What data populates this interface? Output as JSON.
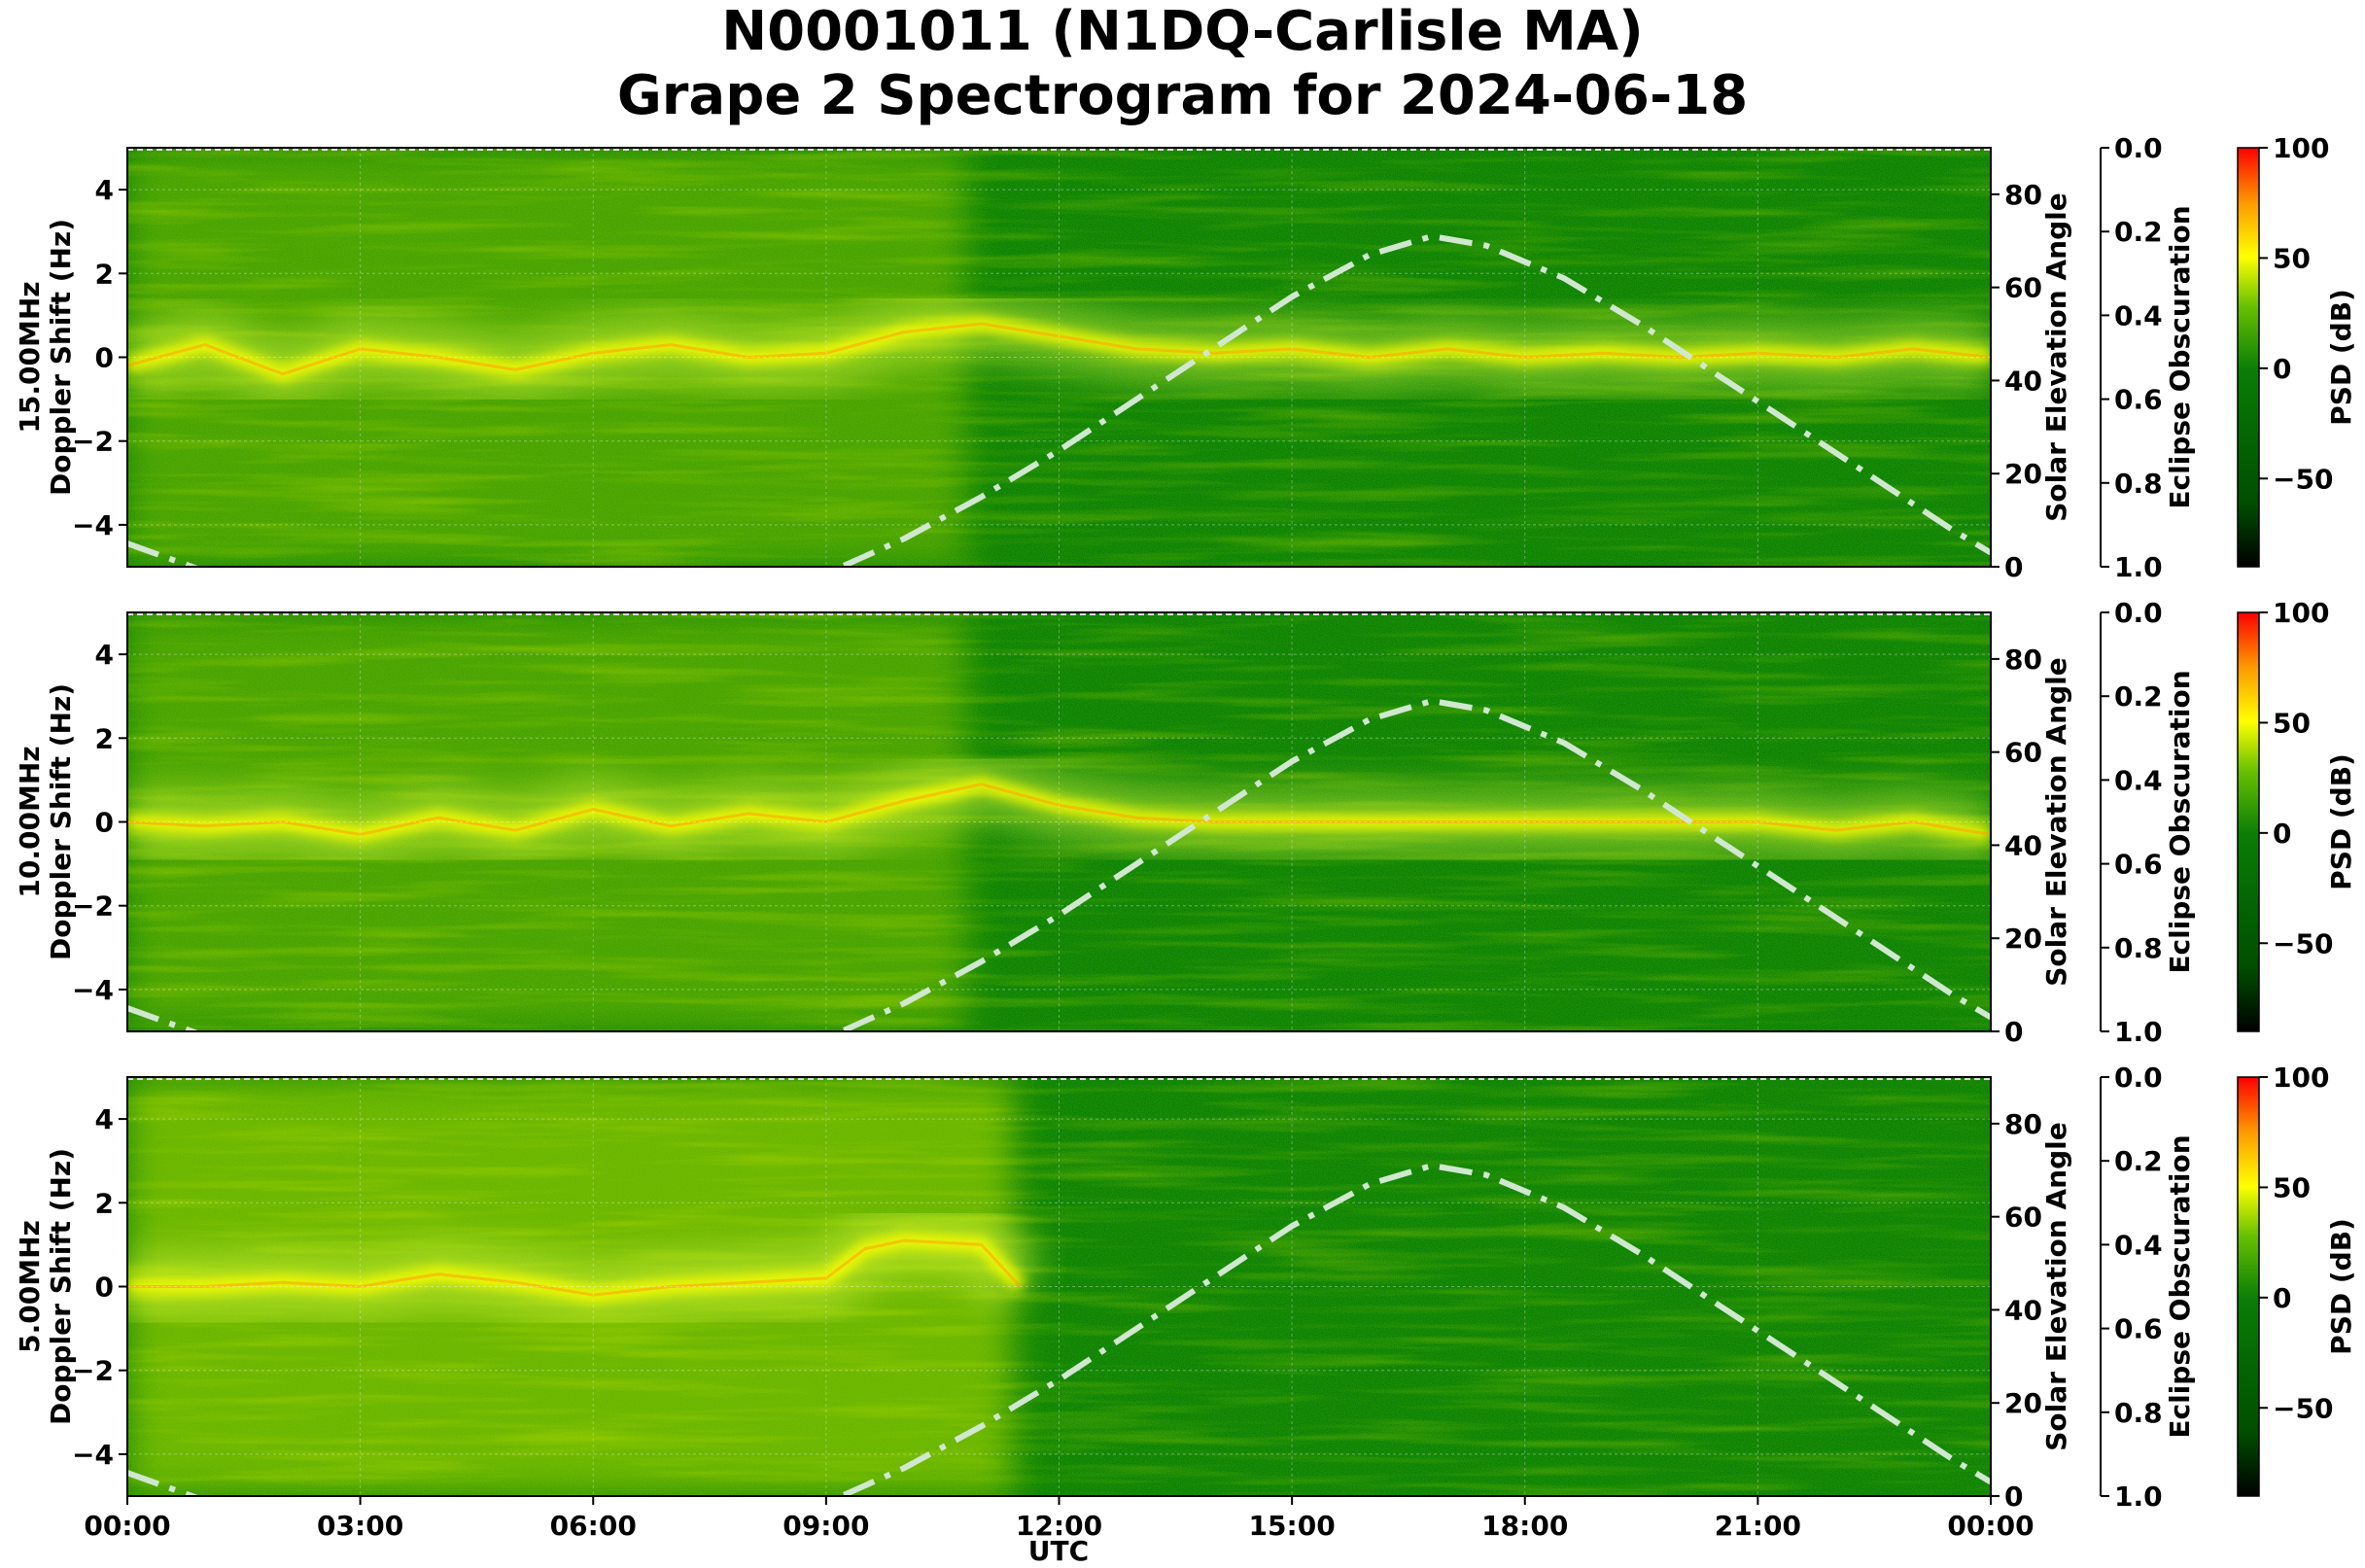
{
  "chart_data": {
    "type": "heatmap",
    "title_line1": "N0001011 (N1DQ-Carlisle MA)",
    "title_line2": "Grape 2 Spectrogram for 2024-06-18",
    "xlabel": "UTC",
    "x_ticks": [
      "00:00",
      "03:00",
      "06:00",
      "09:00",
      "12:00",
      "15:00",
      "18:00",
      "21:00",
      "00:00"
    ],
    "x_range_hours": [
      0,
      24
    ],
    "y_range_hz": [
      -5,
      5
    ],
    "y_ticks": [
      "4",
      "2",
      "0",
      "−2",
      "−4"
    ],
    "y_tick_values": [
      4,
      2,
      0,
      -2,
      -4
    ],
    "elev_label": "Solar Elevation Angle",
    "elev_range": [
      0,
      90
    ],
    "elev_ticks": [
      "80",
      "60",
      "40",
      "20",
      "0"
    ],
    "elev_tick_values": [
      80,
      60,
      40,
      20,
      0
    ],
    "eclipse_label": "Eclipse Obscuration",
    "eclipse_range": [
      0,
      1
    ],
    "eclipse_ticks": [
      "0.0",
      "0.2",
      "0.4",
      "0.6",
      "0.8",
      "1.0"
    ],
    "eclipse_tick_values": [
      0,
      0.2,
      0.4,
      0.6,
      0.8,
      1.0
    ],
    "cbar_label": "PSD (dB)",
    "cbar_range": [
      -90,
      100
    ],
    "cbar_ticks": [
      "100",
      "50",
      "0",
      "−50"
    ],
    "cbar_tick_values": [
      100,
      50,
      0,
      -50
    ],
    "colors": {
      "green": "#0a7d07",
      "yellow": "#ffff00",
      "red": "#ff0000",
      "elev_line": "#cfe8cf"
    },
    "solar_elevation": {
      "hours": [
        0.0,
        2.0,
        4.0,
        6.0,
        8.0,
        9.2,
        10.0,
        11.0,
        12.0,
        13.0,
        14.0,
        15.0,
        16.0,
        16.8,
        17.5,
        18.5,
        19.5,
        20.5,
        21.5,
        22.5,
        23.5,
        24.0
      ],
      "degrees": [
        5,
        -7,
        -16,
        -17,
        -10,
        0,
        6,
        15,
        25,
        36,
        47,
        58,
        67,
        71,
        69,
        62,
        52,
        41,
        30,
        19,
        8,
        3
      ]
    },
    "panels": [
      {
        "label": "15.00MHz",
        "ylabel": "Doppler Shift (Hz)",
        "doppler_trace": {
          "hours": [
            0,
            1,
            2,
            3,
            4,
            5,
            6,
            7,
            8,
            9,
            10,
            11,
            12,
            13,
            14,
            15,
            16,
            17,
            18,
            19,
            20,
            21,
            22,
            23,
            24
          ],
          "hz": [
            -0.2,
            0.3,
            -0.4,
            0.2,
            0.0,
            -0.3,
            0.1,
            0.3,
            0.0,
            0.1,
            0.6,
            0.8,
            0.5,
            0.2,
            0.1,
            0.2,
            0.0,
            0.2,
            0.0,
            0.1,
            0.0,
            0.1,
            0.0,
            0.2,
            0.0
          ]
        }
      },
      {
        "label": "10.00MHz",
        "ylabel": "Doppler Shift (Hz)",
        "doppler_trace": {
          "hours": [
            0,
            1,
            2,
            3,
            4,
            5,
            6,
            7,
            8,
            9,
            10,
            11,
            12,
            13,
            14,
            15,
            16,
            17,
            18,
            19,
            20,
            21,
            22,
            23,
            24
          ],
          "hz": [
            0.0,
            -0.1,
            0.0,
            -0.3,
            0.1,
            -0.2,
            0.3,
            -0.1,
            0.2,
            0.0,
            0.5,
            0.9,
            0.4,
            0.1,
            0.0,
            0.0,
            0.0,
            0.0,
            0.0,
            0.0,
            0.0,
            0.0,
            -0.2,
            0.0,
            -0.3
          ]
        }
      },
      {
        "label": "5.00MHz",
        "ylabel": "Doppler Shift (Hz)",
        "doppler_trace": {
          "hours": [
            0,
            1,
            2,
            3,
            4,
            5,
            6,
            7,
            8,
            9,
            9.5,
            10,
            11,
            11.5
          ],
          "hz": [
            0.0,
            0.0,
            0.1,
            0.0,
            0.3,
            0.1,
            -0.2,
            0.0,
            0.1,
            0.2,
            0.9,
            1.1,
            1.0,
            0.0
          ]
        }
      }
    ]
  }
}
